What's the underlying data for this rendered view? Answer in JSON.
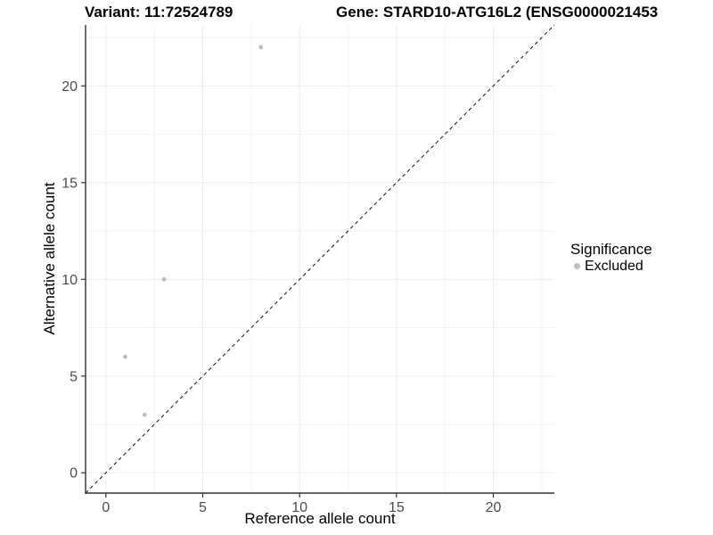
{
  "header": {
    "variant_title": "Variant: 11:72524789",
    "gene_title": "Gene: STARD10-ATG16L2 (ENSG0000021453"
  },
  "chart_data": {
    "type": "scatter",
    "xlabel": "Reference allele count",
    "ylabel": "Alternative allele count",
    "xlim": [
      -1.05,
      23.15
    ],
    "ylim": [
      -1.05,
      23.15
    ],
    "x_ticks": [
      0,
      5,
      10,
      15,
      20
    ],
    "y_ticks": [
      0,
      5,
      10,
      15,
      20
    ],
    "x_minor_ticks": [
      2.5,
      7.5,
      12.5,
      17.5,
      22.5
    ],
    "y_minor_ticks": [
      2.5,
      7.5,
      12.5,
      17.5,
      22.5
    ],
    "grid": "major+minor",
    "legend_position": "right",
    "series": [
      {
        "name": "Excluded",
        "color": "#bebebe",
        "points": [
          {
            "x": 1,
            "y": 6
          },
          {
            "x": 2,
            "y": 3
          },
          {
            "x": 3,
            "y": 10
          },
          {
            "x": 8,
            "y": 22
          }
        ]
      }
    ],
    "reference_line": {
      "type": "identity",
      "equation": "y = x",
      "style": "dashed",
      "color": "#111111"
    }
  },
  "legend": {
    "title": "Significance",
    "items": [
      {
        "label": "Excluded",
        "color": "#bebebe"
      }
    ]
  },
  "colors": {
    "background": "#ffffff",
    "point": "#bebebe",
    "grid_major": "#ebebeb",
    "grid_minor": "#f3f3f3",
    "axis_line": "#333333",
    "tick_mark": "#333333",
    "tick_label": "#4d4d4d"
  }
}
